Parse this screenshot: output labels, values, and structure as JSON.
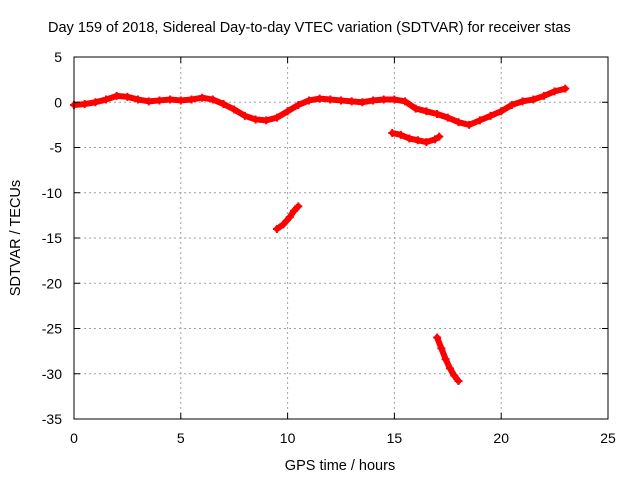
{
  "chart_data": {
    "type": "scatter",
    "title": "Day 159 of 2018, Sidereal Day-to-day VTEC variation (SDTVAR) for receiver stas",
    "xlabel": "GPS time / hours",
    "ylabel": "SDTVAR / TECUs",
    "xlim": [
      0,
      25
    ],
    "ylim": [
      -35,
      5
    ],
    "xticks": [
      0,
      5,
      10,
      15,
      20,
      25
    ],
    "yticks": [
      5,
      0,
      -5,
      -10,
      -15,
      -20,
      -25,
      -30,
      -35
    ],
    "grid": true,
    "series": [
      {
        "name": "main",
        "color": "#ff0000",
        "x": [
          0,
          0.5,
          1.0,
          1.5,
          2.0,
          2.5,
          3.0,
          3.5,
          4.0,
          4.5,
          5.0,
          5.5,
          6.0,
          6.5,
          7.0,
          7.5,
          8.0,
          8.5,
          9.0,
          9.5,
          10.0,
          10.5,
          11.0,
          11.5,
          12.0,
          12.5,
          13.0,
          13.5,
          14.0,
          14.5,
          15.0,
          15.5,
          16.0,
          16.5,
          17.0,
          17.5,
          18.0,
          18.5,
          19.0,
          19.5,
          20.0,
          20.5,
          21.0,
          21.5,
          22.0,
          22.5,
          23.0
        ],
        "y": [
          -0.3,
          -0.2,
          0.0,
          0.3,
          0.7,
          0.6,
          0.3,
          0.1,
          0.2,
          0.3,
          0.2,
          0.3,
          0.5,
          0.3,
          -0.2,
          -0.8,
          -1.5,
          -1.9,
          -2.0,
          -1.7,
          -1.0,
          -0.3,
          0.2,
          0.4,
          0.3,
          0.2,
          0.1,
          0.0,
          0.2,
          0.3,
          0.3,
          0.1,
          -0.7,
          -1.0,
          -1.3,
          -1.7,
          -2.2,
          -2.5,
          -2.0,
          -1.5,
          -1.0,
          -0.3,
          0.1,
          0.3,
          0.7,
          1.2,
          1.5
        ]
      },
      {
        "name": "segment-15-17h",
        "color": "#ff0000",
        "x": [
          14.9,
          15.3,
          15.7,
          16.1,
          16.5,
          16.9,
          17.1
        ],
        "y": [
          -3.4,
          -3.6,
          -4.0,
          -4.2,
          -4.4,
          -4.1,
          -3.8
        ]
      },
      {
        "name": "segment-9.5-10.5h",
        "color": "#ff0000",
        "x": [
          9.5,
          9.8,
          10.1,
          10.3,
          10.5
        ],
        "y": [
          -14.0,
          -13.5,
          -12.7,
          -12.0,
          -11.5
        ]
      },
      {
        "name": "segment-17-18h",
        "color": "#ff0000",
        "x": [
          17.0,
          17.2,
          17.4,
          17.6,
          17.8,
          18.0
        ],
        "y": [
          -26.0,
          -27.2,
          -28.4,
          -29.4,
          -30.2,
          -30.8
        ]
      }
    ]
  }
}
